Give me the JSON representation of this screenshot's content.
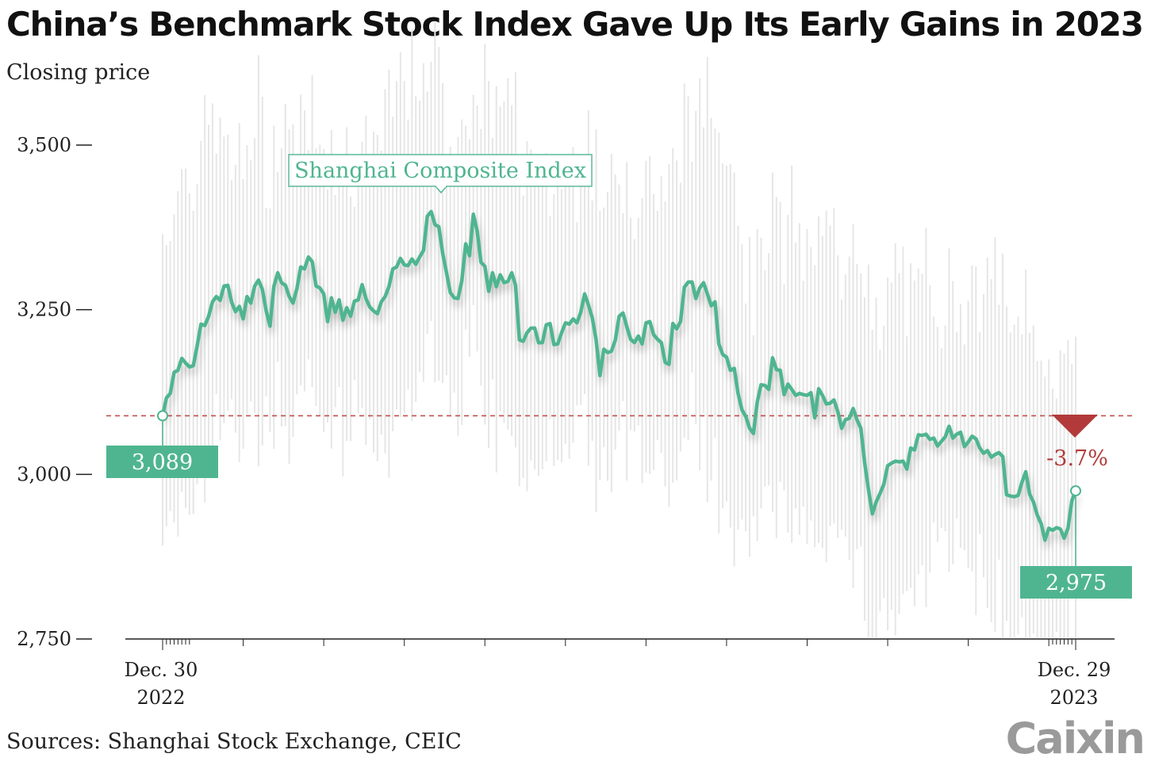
{
  "title": "China’s Benchmark Stock Index Gave Up Its Early Gains in 2023",
  "subtitle": "Closing price",
  "source": "Sources: Shanghai Stock Exchange, CEIC",
  "logo": "Caixin",
  "colors": {
    "line": "#4fb590",
    "callout_fill": "#4fb590",
    "range_bars": "#e6e6e6",
    "reference_line": "#c0504d",
    "decline": "#b23a3a",
    "axis": "#222222"
  },
  "chart_data": {
    "type": "line",
    "title": "China’s Benchmark Stock Index Gave Up Its Early Gains in 2023",
    "ylabel": "Closing price",
    "ylim": [
      2750,
      3650
    ],
    "yticks": [
      2750,
      3000,
      3250,
      3500
    ],
    "ytick_labels": [
      "2,750",
      "3,000",
      "3,250",
      "3,500"
    ],
    "x_start_label": [
      "Dec. 30",
      "2022"
    ],
    "x_end_label": [
      "Dec. 29",
      "2023"
    ],
    "grid": false,
    "legend": "none",
    "series": [
      {
        "name": "Shanghai Composite Index",
        "values": [
          3089,
          3116,
          3123,
          3155,
          3158,
          3176,
          3169,
          3163,
          3165,
          3195,
          3228,
          3226,
          3240,
          3262,
          3270,
          3264,
          3286,
          3287,
          3261,
          3247,
          3255,
          3236,
          3270,
          3260,
          3286,
          3295,
          3281,
          3248,
          3225,
          3285,
          3306,
          3291,
          3287,
          3270,
          3260,
          3282,
          3315,
          3312,
          3330,
          3323,
          3286,
          3283,
          3274,
          3232,
          3268,
          3246,
          3265,
          3234,
          3253,
          3240,
          3263,
          3265,
          3288,
          3267,
          3254,
          3248,
          3244,
          3262,
          3270,
          3285,
          3312,
          3315,
          3328,
          3318,
          3317,
          3327,
          3319,
          3330,
          3340,
          3392,
          3399,
          3379,
          3376,
          3336,
          3306,
          3276,
          3268,
          3267,
          3294,
          3350,
          3332,
          3395,
          3369,
          3322,
          3316,
          3278,
          3306,
          3285,
          3303,
          3291,
          3293,
          3306,
          3287,
          3204,
          3202,
          3215,
          3222,
          3222,
          3200,
          3200,
          3227,
          3229,
          3197,
          3198,
          3215,
          3230,
          3228,
          3236,
          3230,
          3246,
          3274,
          3257,
          3238,
          3204,
          3150,
          3190,
          3185,
          3187,
          3204,
          3240,
          3245,
          3224,
          3205,
          3200,
          3210,
          3198,
          3230,
          3232,
          3212,
          3205,
          3200,
          3170,
          3167,
          3229,
          3221,
          3232,
          3284,
          3292,
          3292,
          3267,
          3283,
          3291,
          3274,
          3256,
          3262,
          3198,
          3182,
          3178,
          3158,
          3161,
          3123,
          3098,
          3088,
          3070,
          3062,
          3110,
          3136,
          3135,
          3129,
          3177,
          3159,
          3158,
          3121,
          3137,
          3129,
          3120,
          3123,
          3121,
          3120,
          3124,
          3086,
          3130,
          3120,
          3107,
          3108,
          3113,
          3095,
          3070,
          3083,
          3085,
          3100,
          3083,
          3070,
          3018,
          2977,
          2940,
          2958,
          2971,
          2985,
          3013,
          3017,
          3020,
          3019,
          3020,
          3008,
          3040,
          3037,
          3060,
          3059,
          3061,
          3053,
          3055,
          3043,
          3050,
          3057,
          3073,
          3055,
          3061,
          3064,
          3042,
          3049,
          3058,
          3054,
          3040,
          3032,
          3036,
          3026,
          3030,
          3033,
          3027,
          2969,
          2967,
          2966,
          2968,
          2988,
          3004,
          2970,
          2958,
          2938,
          2925,
          2900,
          2918,
          2915,
          2919,
          2917,
          2903,
          2918,
          2960,
          2975
        ]
      }
    ],
    "annotations": {
      "series_label": "Shanghai Composite Index",
      "start_value_label": "3,089",
      "end_value_label": "2,975",
      "reference_value": 3089,
      "change_label": "-3.7%"
    }
  }
}
